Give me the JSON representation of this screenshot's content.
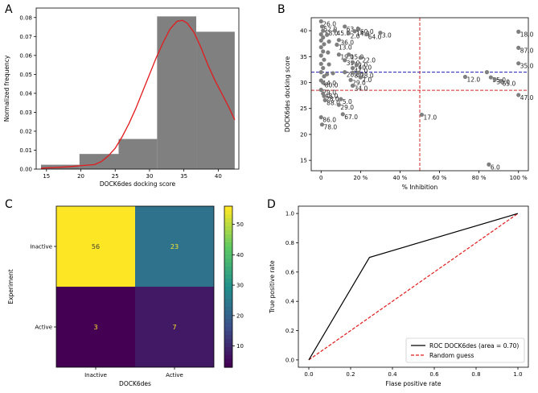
{
  "chart_data": [
    {
      "panel": "A",
      "type": "bar",
      "xlabel": "DOCK6des docking score",
      "ylabel": "Normalized frequency",
      "xlim": [
        13.5,
        43
      ],
      "ylim": [
        0,
        0.085
      ],
      "xticks": [
        15,
        20,
        25,
        30,
        35,
        40
      ],
      "yticks": [
        0.0,
        0.01,
        0.02,
        0.03,
        0.04,
        0.05,
        0.06,
        0.07,
        0.08
      ],
      "bins": [
        {
          "x0": 14.2,
          "x1": 19.8,
          "value": 0.0023
        },
        {
          "x0": 19.8,
          "x1": 25.5,
          "value": 0.008
        },
        {
          "x0": 25.5,
          "x1": 31.1,
          "value": 0.0159
        },
        {
          "x0": 31.1,
          "x1": 36.8,
          "value": 0.0806
        },
        {
          "x0": 36.8,
          "x1": 42.4,
          "value": 0.0725
        }
      ],
      "bar_color": "#808080",
      "curve": {
        "color": "#e31a1c",
        "x": [
          14.2,
          16,
          18,
          20,
          22,
          23,
          24,
          25,
          26,
          27,
          28,
          29,
          30,
          31,
          32,
          33,
          34,
          34.8,
          35.5,
          36.5,
          37.5,
          38.5,
          39.5,
          40.5,
          41.5,
          42.4
        ],
        "y": [
          0.0005,
          0.0008,
          0.0012,
          0.0018,
          0.0024,
          0.004,
          0.007,
          0.011,
          0.017,
          0.024,
          0.032,
          0.041,
          0.05,
          0.059,
          0.067,
          0.074,
          0.078,
          0.0785,
          0.077,
          0.072,
          0.064,
          0.055,
          0.047,
          0.04,
          0.033,
          0.026
        ]
      }
    },
    {
      "panel": "B",
      "type": "scatter",
      "xlabel": "% Inhibition",
      "ylabel": "DOCK6des docking score",
      "xlim": [
        -5,
        105
      ],
      "ylim": [
        13,
        42.5
      ],
      "xticks": [
        0,
        20,
        40,
        60,
        80,
        100
      ],
      "xtick_labels": [
        "0",
        "20 %",
        "40 %",
        "60 %",
        "80 %",
        "100 %"
      ],
      "yticks": [
        15,
        20,
        25,
        30,
        35,
        40
      ],
      "hline": {
        "y": 32.0,
        "color": "#1f1fb4",
        "style": "dashed"
      },
      "hline2": {
        "y": 28.5,
        "color": "#d62728",
        "style": "dashed"
      },
      "vline": {
        "x": 50,
        "color": "#d62728",
        "style": "dashed"
      },
      "point_color": "#7f7f7f",
      "points": [
        {
          "x": 0,
          "y": 41.8,
          "label": "26.0"
        },
        {
          "x": 0.5,
          "y": 40.8,
          "label": "52.0"
        },
        {
          "x": 1,
          "y": 40.0,
          "label": "58.0"
        },
        {
          "x": 0,
          "y": 39.3,
          "label": ""
        },
        {
          "x": 1,
          "y": 38.7,
          "label": ""
        },
        {
          "x": 0,
          "y": 38.1,
          "label": ""
        },
        {
          "x": 1.5,
          "y": 37.4,
          "label": ""
        },
        {
          "x": 0,
          "y": 36.8,
          "label": ""
        },
        {
          "x": 1,
          "y": 36.0,
          "label": ""
        },
        {
          "x": 0,
          "y": 35.2,
          "label": ""
        },
        {
          "x": 1.5,
          "y": 34.4,
          "label": ""
        },
        {
          "x": 0,
          "y": 33.6,
          "label": ""
        },
        {
          "x": 1,
          "y": 32.8,
          "label": ""
        },
        {
          "x": 0,
          "y": 32.0,
          "label": ""
        },
        {
          "x": 1.5,
          "y": 31.2,
          "label": ""
        },
        {
          "x": 0,
          "y": 30.4,
          "label": "14.0"
        },
        {
          "x": 1,
          "y": 30.0,
          "label": "80.0"
        },
        {
          "x": 3,
          "y": 39.2,
          "label": ""
        },
        {
          "x": 4,
          "y": 37.9,
          "label": ""
        },
        {
          "x": 3.5,
          "y": 35.8,
          "label": ""
        },
        {
          "x": 4,
          "y": 33.5,
          "label": ""
        },
        {
          "x": 3,
          "y": 31.6,
          "label": ""
        },
        {
          "x": 0,
          "y": 28.6,
          "label": "79.0"
        },
        {
          "x": 1,
          "y": 27.9,
          "label": "48.0"
        },
        {
          "x": 1.5,
          "y": 27.4,
          "label": "28.0"
        },
        {
          "x": 2,
          "y": 26.6,
          "label": "88.0"
        },
        {
          "x": 0,
          "y": 23.3,
          "label": "86.0"
        },
        {
          "x": 0.5,
          "y": 21.9,
          "label": "78.0"
        },
        {
          "x": 7,
          "y": 40.0,
          "label": "45.0"
        },
        {
          "x": 9,
          "y": 38.2,
          "label": "36.0"
        },
        {
          "x": 8,
          "y": 37.3,
          "label": "13.0"
        },
        {
          "x": 9,
          "y": 35.4,
          "label": "19.0"
        },
        {
          "x": 12,
          "y": 34.3,
          "label": "39.0"
        },
        {
          "x": 6,
          "y": 31.8,
          "label": ""
        },
        {
          "x": 10,
          "y": 26.8,
          "label": "5.0"
        },
        {
          "x": 9,
          "y": 25.7,
          "label": "29.0"
        },
        {
          "x": 11,
          "y": 23.9,
          "label": "67.0"
        },
        {
          "x": 12,
          "y": 40.8,
          "label": "63.0"
        },
        {
          "x": 14,
          "y": 39.5,
          "label": "2.0"
        },
        {
          "x": 17,
          "y": 39.9,
          "label": "14.0"
        },
        {
          "x": 19,
          "y": 40.3,
          "label": "60.0"
        },
        {
          "x": 23,
          "y": 39.3,
          "label": "64.0"
        },
        {
          "x": 30,
          "y": 39.6,
          "label": "3.0"
        },
        {
          "x": 14,
          "y": 35.4,
          "label": "15.0"
        },
        {
          "x": 16,
          "y": 33.9,
          "label": "32.0"
        },
        {
          "x": 18,
          "y": 33.4,
          "label": "40.0"
        },
        {
          "x": 20,
          "y": 34.8,
          "label": "22.0"
        },
        {
          "x": 16,
          "y": 32.8,
          "label": "41.0"
        },
        {
          "x": 12,
          "y": 32.0,
          "label": "20.0"
        },
        {
          "x": 16,
          "y": 31.9,
          "label": "8.0"
        },
        {
          "x": 19,
          "y": 31.9,
          "label": "78.0"
        },
        {
          "x": 15,
          "y": 30.5,
          "label": "29.0"
        },
        {
          "x": 20,
          "y": 31.0,
          "label": "7.0"
        },
        {
          "x": 16,
          "y": 29.4,
          "label": "34.0"
        },
        {
          "x": 51,
          "y": 23.8,
          "label": "17.0"
        },
        {
          "x": 73,
          "y": 31.1,
          "label": "12.0"
        },
        {
          "x": 84,
          "y": 32.0,
          "label": ""
        },
        {
          "x": 86,
          "y": 31.0,
          "label": "55.0"
        },
        {
          "x": 88,
          "y": 30.6,
          "label": "30.0"
        },
        {
          "x": 91,
          "y": 30.3,
          "label": "65.0"
        },
        {
          "x": 100,
          "y": 39.8,
          "label": "18.0"
        },
        {
          "x": 100,
          "y": 36.7,
          "label": "87.0"
        },
        {
          "x": 100,
          "y": 33.7,
          "label": "35.0"
        },
        {
          "x": 100,
          "y": 27.6,
          "label": "47.0"
        },
        {
          "x": 85,
          "y": 14.2,
          "label": "6.0"
        }
      ]
    },
    {
      "panel": "C",
      "type": "heatmap",
      "xlabel": "DOCK6des",
      "ylabel": "Experiment",
      "x_categories": [
        "Inactive",
        "Active"
      ],
      "y_categories": [
        "Inactive",
        "Active"
      ],
      "matrix": [
        [
          56,
          23
        ],
        [
          3,
          7
        ]
      ],
      "colorbar_ticks": [
        10,
        20,
        30,
        40,
        50
      ],
      "vmin": 3,
      "vmax": 56
    },
    {
      "panel": "D",
      "type": "line",
      "xlabel": "Flase positive rate",
      "ylabel": "True positive rate",
      "xlim": [
        -0.05,
        1.05
      ],
      "ylim": [
        -0.05,
        1.05
      ],
      "xticks": [
        0.0,
        0.2,
        0.4,
        0.6,
        0.8,
        1.0
      ],
      "yticks": [
        0.0,
        0.2,
        0.4,
        0.6,
        0.8,
        1.0
      ],
      "legend_position": "lower-right",
      "series": [
        {
          "name": "ROC DOCK6des (area = 0.70)",
          "color": "#000000",
          "style": "solid",
          "x": [
            0.0,
            0.29,
            1.0
          ],
          "y": [
            0.0,
            0.7,
            1.0
          ]
        },
        {
          "name": "Random guess",
          "color": "#e31a1c",
          "style": "dashed",
          "x": [
            0.0,
            1.0
          ],
          "y": [
            0.0,
            1.0
          ]
        }
      ]
    }
  ],
  "panel_labels": [
    "A",
    "B",
    "C",
    "D"
  ]
}
